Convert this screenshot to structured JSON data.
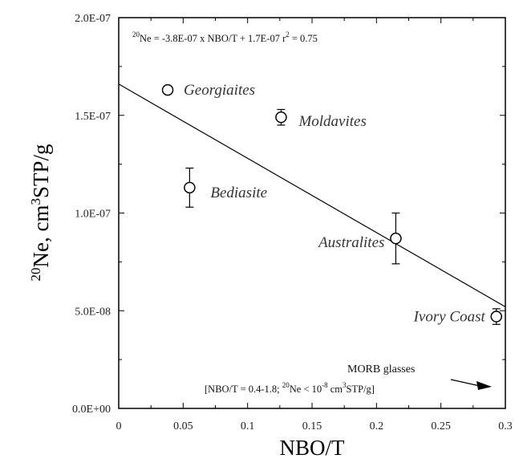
{
  "chart_data": {
    "type": "scatter",
    "title": "",
    "xlabel": "NBO/T",
    "ylabel": {
      "sup": "20",
      "main": "Ne, cm",
      "sup2": "3",
      "rest": "STP/g"
    },
    "xlim": [
      0,
      0.3
    ],
    "ylim": [
      0,
      2e-07
    ],
    "x_ticks": [
      0,
      0.05,
      0.1,
      0.15,
      0.2,
      0.25,
      0.3
    ],
    "x_tick_labels": [
      "0",
      "0.05",
      "0.1",
      "0.15",
      "0.2",
      "0.25",
      "0.3"
    ],
    "y_ticks": [
      0,
      5e-08,
      1e-07,
      1.5e-07,
      2e-07
    ],
    "y_tick_labels": [
      "0.0E+00",
      "5.0E-08",
      "1.0E-07",
      "1.5E-07",
      "2.0E-07"
    ],
    "grid": false,
    "points": [
      {
        "label": "Georgiaites",
        "x": 0.038,
        "y": 1.63e-07,
        "err": 0.0
      },
      {
        "label": "Moldavites",
        "x": 0.126,
        "y": 1.49e-07,
        "err": 4e-09
      },
      {
        "label": "Bediasite",
        "x": 0.055,
        "y": 1.13e-07,
        "err": 1e-08
      },
      {
        "label": "Australites",
        "x": 0.215,
        "y": 8.7e-08,
        "err": 1.3e-08
      },
      {
        "label": "Ivory Coast",
        "x": 0.293,
        "y": 4.7e-08,
        "err": 4e-09
      }
    ],
    "fit": {
      "slope": -3.8e-07,
      "intercept": 1.66e-07,
      "x_range": [
        0,
        0.3
      ]
    },
    "equation": {
      "sup": "20",
      "text": "Ne =  -3.8E-07 x NBO/T + 1.7E-07   r",
      "r_sup": "2",
      "r_value": " = 0.75"
    },
    "annotation": {
      "label": "MORB glasses",
      "note_prefix": "[NBO/T = 0.4-1.8; ",
      "note_sup1": "20",
      "note_mid": "Ne < 10",
      "note_sup2": "-8",
      "note_unit": " cm",
      "note_sup3": "3",
      "note_suffix": "STP/g]"
    }
  }
}
